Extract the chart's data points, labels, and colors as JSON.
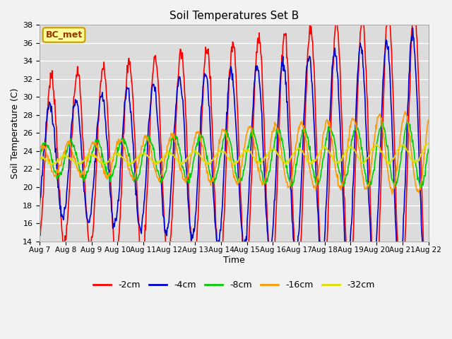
{
  "title": "Soil Temperatures Set B",
  "xlabel": "Time",
  "ylabel": "Soil Temperature (C)",
  "ylim": [
    14,
    38
  ],
  "yticks": [
    14,
    16,
    18,
    20,
    22,
    24,
    26,
    28,
    30,
    32,
    34,
    36,
    38
  ],
  "x_labels": [
    "Aug 7",
    "Aug 8",
    "Aug 9",
    "Aug 10",
    "Aug 11",
    "Aug 12",
    "Aug 13",
    "Aug 14",
    "Aug 15",
    "Aug 16",
    "Aug 17",
    "Aug 18",
    "Aug 19",
    "Aug 20",
    "Aug 21",
    "Aug 22"
  ],
  "series_labels": [
    "-2cm",
    "-4cm",
    "-8cm",
    "-16cm",
    "-32cm"
  ],
  "series_colors": [
    "#ff0000",
    "#0000cc",
    "#00cc00",
    "#ff9900",
    "#dddd00"
  ],
  "bg_color": "#dcdcdc",
  "grid_color": "#ffffff",
  "annotation_text": "BC_met",
  "annotation_fg": "#993300",
  "annotation_bg": "#ffff99",
  "annotation_border": "#cc9900",
  "fig_bg": "#f2f2f2",
  "linewidth": 1.2
}
